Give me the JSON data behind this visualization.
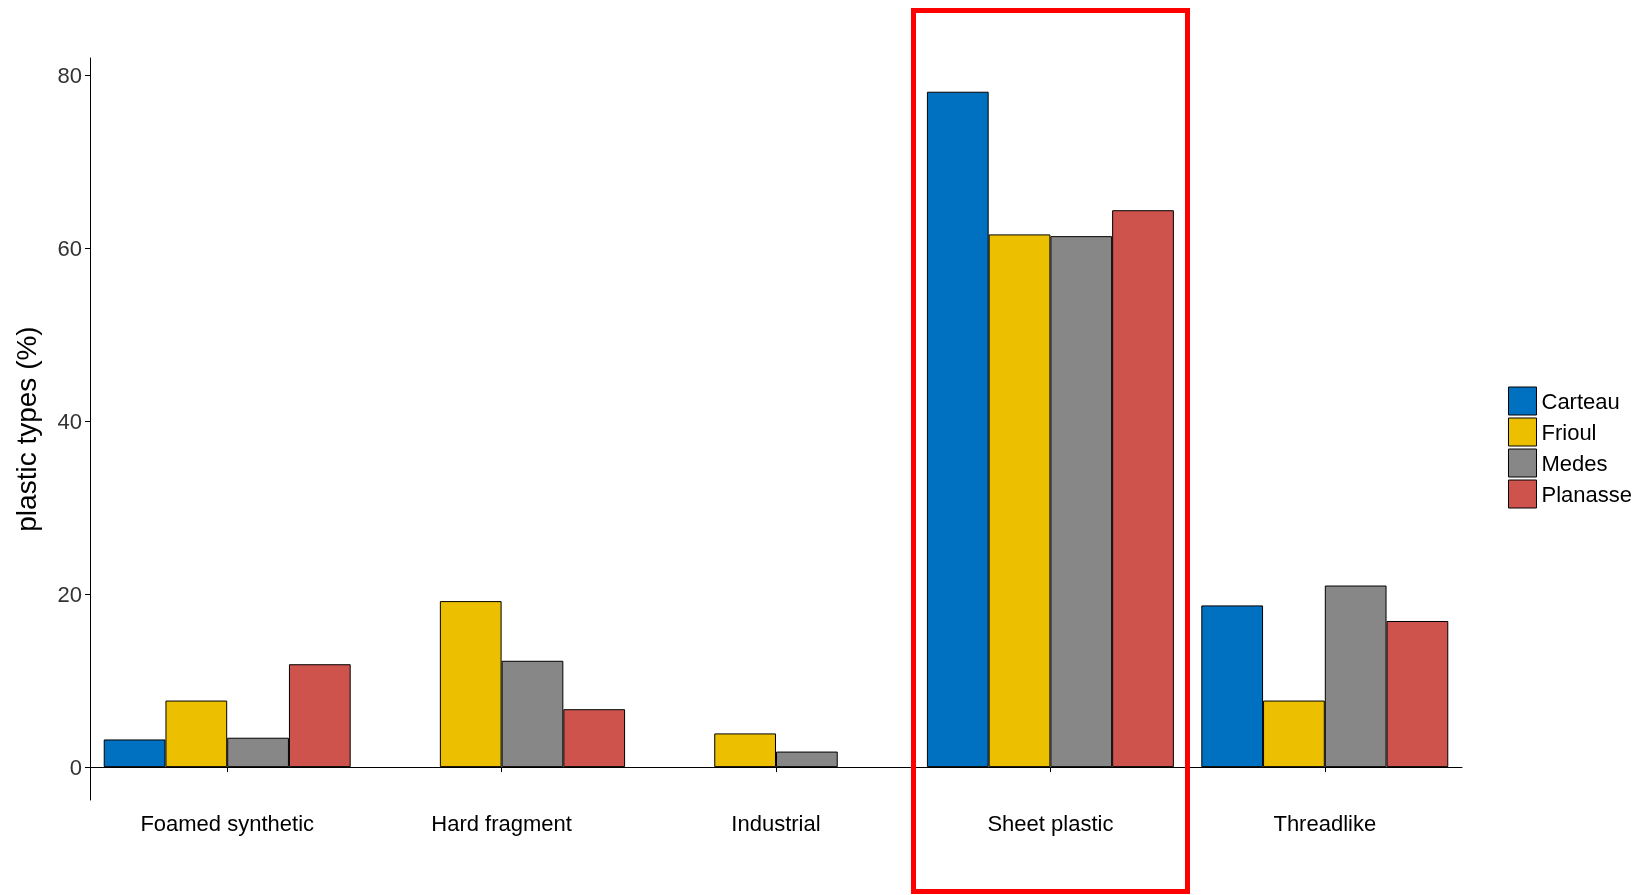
{
  "chart_data": {
    "type": "bar",
    "ylabel": "plastic types (%)",
    "categories": [
      "Foamed synthetic",
      "Hard fragment",
      "Industrial",
      "Sheet plastic",
      "Threadlike"
    ],
    "series": [
      {
        "name": "Carteau",
        "color": "#0070c0",
        "values": [
          3.2,
          0,
          0,
          78.1,
          18.7
        ]
      },
      {
        "name": "Frioul",
        "color": "#ecc000",
        "values": [
          7.7,
          19.2,
          3.9,
          61.6,
          7.7
        ]
      },
      {
        "name": "Medes",
        "color": "#878787",
        "values": [
          3.4,
          12.3,
          1.8,
          61.4,
          21.0
        ]
      },
      {
        "name": "Planasse",
        "color": "#cd534c",
        "values": [
          11.9,
          6.7,
          0,
          64.4,
          16.9
        ]
      }
    ],
    "ylim": [
      -3.8,
      82
    ],
    "yticks": [
      0,
      20,
      40,
      60,
      80
    ],
    "grid": false,
    "legend": "right"
  }
}
